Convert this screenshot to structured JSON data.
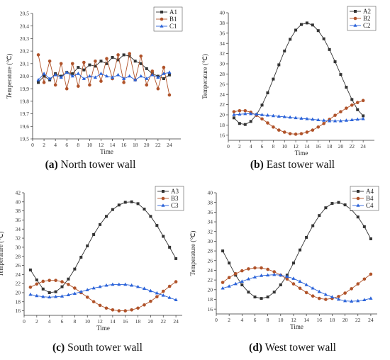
{
  "colors": {
    "A": "#333333",
    "B": "#b0532a",
    "C": "#2b63d9",
    "axis": "#333333"
  },
  "panels": [
    {
      "caption": {
        "letter": "(a)",
        "text": "North tower wall"
      }
    },
    {
      "caption": {
        "letter": "(b)",
        "text": "East tower wall"
      }
    },
    {
      "caption": {
        "letter": "(c)",
        "text": "South tower wall"
      }
    },
    {
      "caption": {
        "letter": "(d)",
        "text": "West tower wall"
      }
    }
  ],
  "chart_data": [
    {
      "type": "line",
      "xlabel": "Time",
      "ylabel": "Temperature (℃)",
      "xlim": [
        0,
        26
      ],
      "xticks": [
        0,
        2,
        4,
        6,
        8,
        10,
        12,
        14,
        16,
        18,
        20,
        22,
        24
      ],
      "ylim": [
        19.5,
        20.5
      ],
      "yticks": [
        19.5,
        19.6,
        19.7,
        19.8,
        19.9,
        20.0,
        20.1,
        20.2,
        20.3,
        20.4,
        20.5
      ],
      "ytick_labels": [
        "19,5",
        "19,6",
        "19,7",
        "19,8",
        "19,9",
        "20,0",
        "20,1",
        "20,2",
        "20,3",
        "20,4",
        "20,5"
      ],
      "x": [
        1,
        2,
        3,
        4,
        5,
        6,
        7,
        8,
        9,
        10,
        11,
        12,
        13,
        14,
        15,
        16,
        17,
        18,
        19,
        20,
        21,
        22,
        23,
        24
      ],
      "legend": "top-right",
      "series": [
        {
          "name": "A1",
          "marker": "square",
          "values": [
            19.95,
            20.0,
            19.97,
            20.02,
            20.0,
            20.03,
            20.02,
            20.07,
            20.05,
            20.09,
            20.08,
            20.12,
            20.1,
            20.15,
            20.13,
            20.17,
            20.16,
            20.12,
            20.1,
            20.06,
            20.02,
            20.0,
            19.98,
            20.01
          ]
        },
        {
          "name": "B1",
          "marker": "circle",
          "values": [
            20.17,
            19.95,
            20.12,
            19.93,
            20.1,
            19.9,
            20.1,
            19.92,
            20.11,
            19.93,
            20.12,
            19.96,
            20.14,
            19.98,
            20.17,
            19.95,
            20.18,
            19.97,
            20.16,
            19.93,
            20.04,
            19.9,
            20.07,
            19.85
          ]
        },
        {
          "name": "C1",
          "marker": "triangle",
          "values": [
            19.97,
            20.02,
            19.98,
            20.01,
            19.99,
            20.03,
            20.0,
            20.02,
            19.98,
            20.0,
            19.99,
            20.02,
            20.0,
            19.99,
            20.01,
            19.98,
            20.0,
            19.97,
            20.0,
            19.98,
            20.01,
            19.99,
            20.02,
            20.03
          ]
        }
      ]
    },
    {
      "type": "line",
      "xlabel": "Time",
      "ylabel": "Temperature (℃)",
      "xlim": [
        0,
        26
      ],
      "xticks": [
        0,
        2,
        4,
        6,
        8,
        10,
        12,
        14,
        16,
        18,
        20,
        22,
        24
      ],
      "ylim": [
        15,
        40
      ],
      "yticks": [
        16,
        18,
        20,
        22,
        24,
        26,
        28,
        30,
        32,
        34,
        36,
        38,
        40
      ],
      "ytick_labels": [
        "16",
        "18",
        "20",
        "22",
        "24",
        "26",
        "28",
        "30",
        "32",
        "34",
        "36",
        "38",
        "40"
      ],
      "x": [
        1,
        2,
        3,
        4,
        5,
        6,
        7,
        8,
        9,
        10,
        11,
        12,
        13,
        14,
        15,
        16,
        17,
        18,
        19,
        20,
        21,
        22,
        23,
        24
      ],
      "legend": "top-right",
      "series": [
        {
          "name": "A2",
          "marker": "square",
          "values": [
            19.4,
            18.3,
            18.1,
            18.7,
            20.0,
            21.9,
            24.3,
            27.0,
            29.8,
            32.5,
            34.8,
            36.6,
            37.7,
            38.0,
            37.6,
            36.5,
            34.9,
            32.8,
            30.4,
            27.9,
            25.4,
            23.0,
            21.0,
            19.8
          ]
        },
        {
          "name": "B2",
          "marker": "circle",
          "values": [
            20.6,
            20.8,
            20.8,
            20.5,
            19.9,
            19.2,
            18.4,
            17.6,
            17.0,
            16.6,
            16.3,
            16.2,
            16.3,
            16.6,
            17.0,
            17.6,
            18.3,
            19.1,
            19.9,
            20.6,
            21.3,
            21.9,
            22.4,
            22.8
          ]
        },
        {
          "name": "C2",
          "marker": "triangle",
          "values": [
            20.0,
            20.1,
            20.2,
            20.2,
            20.1,
            20.0,
            19.9,
            19.8,
            19.7,
            19.6,
            19.5,
            19.4,
            19.3,
            19.2,
            19.1,
            19.0,
            18.9,
            18.8,
            18.8,
            18.8,
            18.9,
            19.0,
            19.1,
            19.2
          ]
        }
      ]
    },
    {
      "type": "line",
      "xlabel": "Time",
      "ylabel": "Temperature (℃)",
      "xlim": [
        0,
        25
      ],
      "xticks": [
        0,
        2,
        4,
        6,
        8,
        10,
        12,
        14,
        16,
        18,
        20,
        22,
        24
      ],
      "ylim": [
        15,
        42
      ],
      "yticks": [
        16,
        18,
        20,
        22,
        24,
        26,
        28,
        30,
        32,
        34,
        36,
        38,
        40,
        42
      ],
      "ytick_labels": [
        "16",
        "18",
        "20",
        "22",
        "24",
        "26",
        "28",
        "30",
        "32",
        "34",
        "36",
        "38",
        "40",
        "42"
      ],
      "x": [
        1,
        2,
        3,
        4,
        5,
        6,
        7,
        8,
        9,
        10,
        11,
        12,
        13,
        14,
        15,
        16,
        17,
        18,
        19,
        20,
        21,
        22,
        23,
        24
      ],
      "legend": "top-right",
      "series": [
        {
          "name": "A3",
          "marker": "square",
          "values": [
            25.0,
            22.8,
            20.8,
            20.0,
            20.2,
            21.3,
            23.0,
            25.2,
            27.8,
            30.3,
            32.8,
            35.0,
            36.8,
            38.3,
            39.3,
            39.9,
            40.0,
            39.6,
            38.4,
            36.8,
            34.8,
            32.4,
            30.0,
            27.5
          ]
        },
        {
          "name": "B3",
          "marker": "circle",
          "values": [
            21.2,
            21.9,
            22.5,
            22.7,
            22.7,
            22.4,
            21.8,
            21.0,
            20.0,
            19.0,
            18.0,
            17.2,
            16.6,
            16.2,
            16.0,
            16.0,
            16.2,
            16.6,
            17.3,
            18.1,
            19.1,
            20.3,
            21.4,
            22.4
          ]
        },
        {
          "name": "C3",
          "marker": "triangle",
          "values": [
            19.6,
            19.3,
            19.1,
            19.0,
            19.1,
            19.2,
            19.5,
            19.8,
            20.2,
            20.6,
            21.0,
            21.3,
            21.6,
            21.8,
            21.8,
            21.8,
            21.6,
            21.3,
            20.9,
            20.4,
            19.9,
            19.4,
            18.9,
            18.4
          ]
        }
      ]
    },
    {
      "type": "line",
      "xlabel": "Time",
      "ylabel": "Temperature (℃)",
      "xlim": [
        0,
        25
      ],
      "xticks": [
        0,
        2,
        4,
        6,
        8,
        10,
        12,
        14,
        16,
        18,
        20,
        22,
        24
      ],
      "ylim": [
        15,
        40
      ],
      "yticks": [
        16,
        18,
        20,
        22,
        24,
        26,
        28,
        30,
        32,
        34,
        36,
        38,
        40
      ],
      "ytick_labels": [
        "16",
        "18",
        "20",
        "22",
        "24",
        "26",
        "28",
        "30",
        "32",
        "34",
        "36",
        "38",
        "40"
      ],
      "x": [
        1,
        2,
        3,
        4,
        5,
        6,
        7,
        8,
        9,
        10,
        11,
        12,
        13,
        14,
        15,
        16,
        17,
        18,
        19,
        20,
        21,
        22,
        23,
        24
      ],
      "legend": "top-right",
      "series": [
        {
          "name": "A4",
          "marker": "square",
          "values": [
            28.0,
            25.5,
            23.0,
            21.0,
            19.5,
            18.5,
            18.2,
            18.5,
            19.5,
            21.0,
            23.0,
            25.5,
            28.2,
            30.8,
            33.2,
            35.3,
            36.9,
            37.8,
            38.0,
            37.5,
            36.5,
            35.0,
            33.0,
            30.5
          ]
        },
        {
          "name": "B4",
          "marker": "circle",
          "values": [
            21.5,
            22.5,
            23.3,
            23.9,
            24.3,
            24.5,
            24.5,
            24.2,
            23.7,
            23.0,
            22.2,
            21.2,
            20.3,
            19.4,
            18.7,
            18.2,
            18.0,
            18.2,
            18.6,
            19.3,
            20.2,
            21.2,
            22.2,
            23.2
          ]
        },
        {
          "name": "C4",
          "marker": "triangle",
          "values": [
            20.3,
            20.7,
            21.2,
            21.7,
            22.2,
            22.6,
            22.9,
            23.0,
            23.1,
            23.0,
            22.7,
            22.3,
            21.7,
            21.0,
            20.3,
            19.6,
            19.0,
            18.5,
            18.0,
            17.7,
            17.6,
            17.7,
            17.9,
            18.2
          ]
        }
      ]
    }
  ]
}
